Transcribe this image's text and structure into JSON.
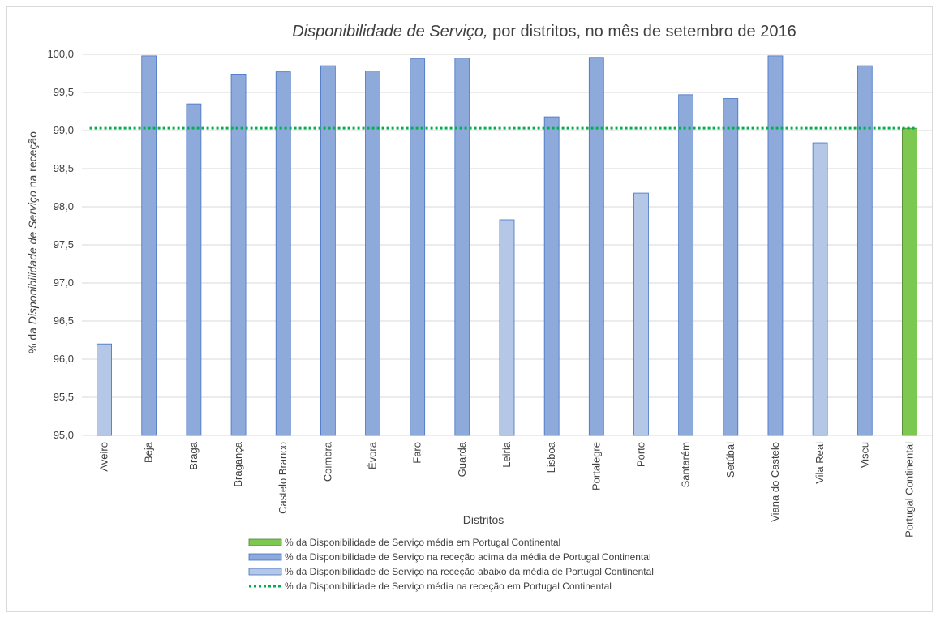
{
  "chart_data": {
    "type": "bar",
    "title_italic": "Disponibilidade de Serviço,",
    "title_rest": " por distritos, no mês de setembro de 2016",
    "ylabel_prefix": "% da ",
    "ylabel_italic": "Disponibilidade de Serviço",
    "ylabel_suffix": " na receção",
    "xlabel": "Distritos",
    "ylim": [
      95.0,
      100.0
    ],
    "yticks": [
      "95,0",
      "95,5",
      "96,0",
      "96,5",
      "97,0",
      "97,5",
      "98,0",
      "98,5",
      "99,0",
      "99,5",
      "100,0"
    ],
    "categories": [
      "Aveiro",
      "Beja",
      "Braga",
      "Bragança",
      "Castelo Branco",
      "Coimbra",
      "Évora",
      "Faro",
      "Guarda",
      "Leiria",
      "Lisboa",
      "Portalegre",
      "Porto",
      "Santarém",
      "Setúbal",
      "Viana do Castelo",
      "Vila Real",
      "Viseu",
      "Portugal Continental"
    ],
    "values": [
      96.2,
      99.98,
      99.35,
      99.74,
      99.77,
      99.85,
      99.78,
      99.94,
      99.95,
      97.83,
      99.18,
      99.96,
      98.18,
      99.47,
      99.42,
      99.98,
      98.84,
      99.85,
      99.03
    ],
    "bar_class": [
      "below",
      "above",
      "above",
      "above",
      "above",
      "above",
      "above",
      "above",
      "above",
      "below",
      "above",
      "above",
      "below",
      "above",
      "above",
      "above",
      "below",
      "above",
      "average"
    ],
    "average_line": 99.03,
    "grid": true,
    "legend_placement": "bottom",
    "colors": {
      "above": "#8eaadb",
      "below": "#b4c7e7",
      "average": "#7dc850",
      "line": "#00b050",
      "border": "#4472c4",
      "avg_border": "#548235"
    },
    "legend": [
      {
        "key": "average",
        "label": "% da Disponibilidade de Serviço média em Portugal Continental"
      },
      {
        "key": "above",
        "label": "% da Disponibilidade de Serviço na receção acima da média de Portugal Continental"
      },
      {
        "key": "below",
        "label": "% da Disponibilidade de Serviço na receção abaixo da média de Portugal Continental"
      },
      {
        "key": "line",
        "label": "% da Disponibilidade de Serviço média na receção em Portugal Continental"
      }
    ]
  }
}
